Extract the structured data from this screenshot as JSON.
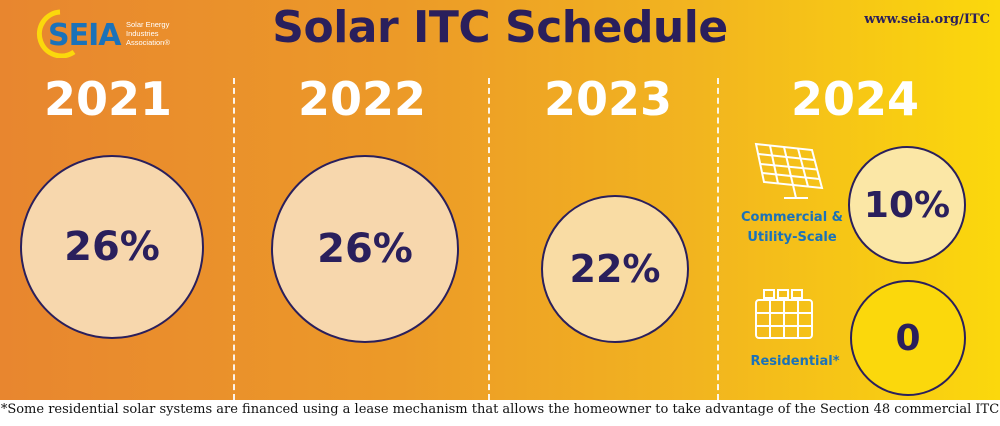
{
  "header": {
    "logo_word": "SEIA",
    "logo_subtitle": "Solar Energy Industries Association®",
    "title": "Solar ITC Schedule",
    "url": "www.seia.org/ITC"
  },
  "colors": {
    "title": "#2a1f5c",
    "label_blue": "#1b72b9",
    "gradient_start": "#e8862f",
    "gradient_end": "#fbd80c"
  },
  "columns": [
    {
      "year": "2021",
      "rate": "26%"
    },
    {
      "year": "2022",
      "rate": "26%"
    },
    {
      "year": "2023",
      "rate": "22%"
    },
    {
      "year": "2024",
      "segments": [
        {
          "label": "Commercial & Utility-Scale",
          "rate": "10%",
          "icon": "solar-panel-icon"
        },
        {
          "label": "Residential*",
          "rate": "0",
          "icon": "rooftop-solar-icon"
        }
      ]
    }
  ],
  "footnote": "*Some residential solar systems are financed using a lease mechanism that allows the homeowner to take advantage of the Section 48 commercial ITC"
}
